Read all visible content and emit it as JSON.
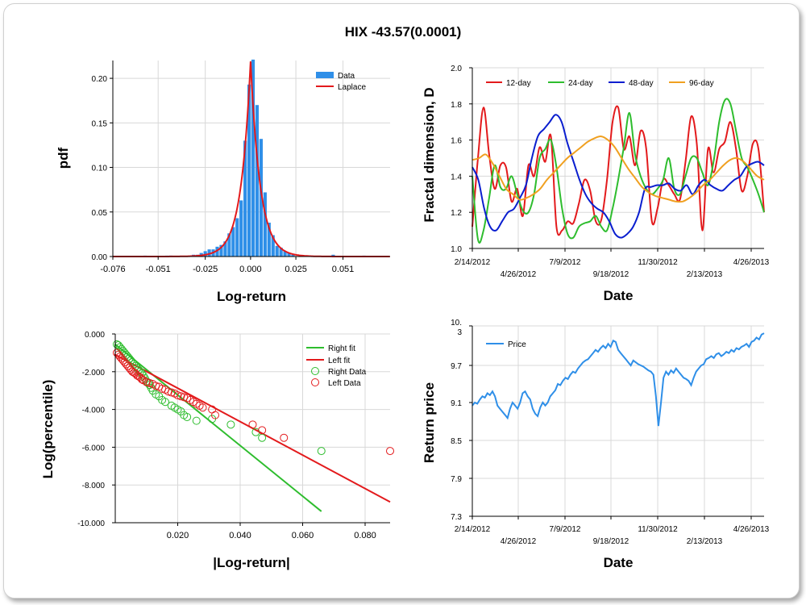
{
  "title": "HIX -43.57(0.0001)",
  "chart_data": [
    {
      "id": "pdf",
      "type": "bar",
      "xlabel": "Log-return",
      "ylabel": "pdf",
      "xlim": [
        -0.076,
        0.077
      ],
      "ylim": [
        0,
        0.22
      ],
      "x_ticks": [
        "-0.076",
        "-0.051",
        "-0.025",
        "0.000",
        "0.025",
        "0.051"
      ],
      "x_tick_values": [
        -0.076,
        -0.051,
        -0.025,
        0.0,
        0.025,
        0.051
      ],
      "y_ticks": [
        "0.00",
        "0.05",
        "0.10",
        "0.15",
        "0.20"
      ],
      "y_tick_values": [
        0.0,
        0.05,
        0.1,
        0.15,
        0.2
      ],
      "legend": {
        "position": "top-right",
        "items": [
          "Data",
          "Laplace"
        ]
      },
      "grid": true,
      "colors": {
        "data": "#2f8fe8",
        "laplace": "#e31a1c"
      },
      "series": [
        {
          "name": "Data",
          "bin_width": 0.0022,
          "x": [
            -0.0582,
            -0.0462,
            -0.044,
            -0.0315,
            -0.0293,
            -0.0272,
            -0.025,
            -0.0228,
            -0.0206,
            -0.0184,
            -0.0162,
            -0.014,
            -0.0118,
            -0.0096,
            -0.0074,
            -0.0052,
            -0.003,
            -0.0008,
            0.0014,
            0.0036,
            0.0058,
            0.008,
            0.0102,
            0.0124,
            0.0146,
            0.0168,
            0.019,
            0.0212,
            0.0234,
            0.0456,
            0.0626
          ],
          "values": [
            0.001,
            0.001,
            0.001,
            0.002,
            0.002,
            0.004,
            0.006,
            0.008,
            0.008,
            0.011,
            0.013,
            0.017,
            0.026,
            0.033,
            0.043,
            0.063,
            0.13,
            0.193,
            0.221,
            0.17,
            0.132,
            0.072,
            0.038,
            0.024,
            0.012,
            0.01,
            0.006,
            0.004,
            0.002,
            0.002,
            0.001
          ]
        },
        {
          "name": "Laplace",
          "b": 0.0053,
          "mu": 0.0
        }
      ]
    },
    {
      "id": "fractal",
      "type": "line",
      "xlabel": "Date",
      "ylabel": "Fractal dimension, D",
      "ylim": [
        1.0,
        2.0
      ],
      "y_ticks": [
        "1.0",
        "1.2",
        "1.4",
        "1.6",
        "1.8",
        "2.0"
      ],
      "y_tick_values": [
        1.0,
        1.2,
        1.4,
        1.6,
        1.8,
        2.0
      ],
      "x_ticks_top": [
        "2/14/2012",
        "7/9/2012",
        "11/30/2012",
        "4/26/2013"
      ],
      "x_ticks_bottom": [
        "4/26/2012",
        "9/18/2012",
        "2/13/2013"
      ],
      "legend": {
        "position": "top",
        "items": [
          "12-day",
          "24-day",
          "48-day",
          "96-day"
        ]
      },
      "grid": true,
      "series": [
        {
          "name": "12-day",
          "color": "#e31a1c",
          "y": [
            1.12,
            1.5,
            1.78,
            1.52,
            1.33,
            1.46,
            1.45,
            1.26,
            1.33,
            1.18,
            1.46,
            1.4,
            1.56,
            1.48,
            1.62,
            1.12,
            1.1,
            1.15,
            1.14,
            1.25,
            1.38,
            1.32,
            1.15,
            1.16,
            1.38,
            1.7,
            1.78,
            1.55,
            1.62,
            1.46,
            1.65,
            1.55,
            1.15,
            1.22,
            1.38,
            1.35,
            1.3,
            1.27,
            1.48,
            1.73,
            1.58,
            1.1,
            1.55,
            1.42,
            1.55,
            1.59,
            1.7,
            1.55,
            1.32,
            1.4,
            1.58,
            1.55,
            1.2
          ]
        },
        {
          "name": "24-day",
          "color": "#2ebd2e",
          "y": [
            1.4,
            1.05,
            1.1,
            1.28,
            1.46,
            1.34,
            1.33,
            1.4,
            1.3,
            1.21,
            1.2,
            1.3,
            1.5,
            1.55,
            1.6,
            1.45,
            1.22,
            1.08,
            1.06,
            1.12,
            1.14,
            1.15,
            1.18,
            1.12,
            1.1,
            1.22,
            1.38,
            1.56,
            1.75,
            1.52,
            1.4,
            1.33,
            1.3,
            1.33,
            1.38,
            1.5,
            1.33,
            1.3,
            1.4,
            1.5,
            1.5,
            1.42,
            1.35,
            1.48,
            1.7,
            1.82,
            1.8,
            1.65,
            1.5,
            1.45,
            1.38,
            1.3,
            1.2
          ]
        },
        {
          "name": "48-day",
          "color": "#0a1ecf",
          "y": [
            1.45,
            1.38,
            1.22,
            1.12,
            1.1,
            1.15,
            1.2,
            1.22,
            1.28,
            1.35,
            1.5,
            1.62,
            1.66,
            1.7,
            1.74,
            1.7,
            1.58,
            1.48,
            1.38,
            1.3,
            1.25,
            1.22,
            1.2,
            1.15,
            1.08,
            1.06,
            1.08,
            1.12,
            1.2,
            1.33,
            1.34,
            1.35,
            1.35,
            1.36,
            1.33,
            1.32,
            1.35,
            1.3,
            1.35,
            1.38,
            1.35,
            1.33,
            1.32,
            1.35,
            1.38,
            1.4,
            1.45,
            1.47,
            1.48,
            1.46
          ]
        },
        {
          "name": "96-day",
          "color": "#f0a020",
          "y": [
            1.49,
            1.5,
            1.52,
            1.47,
            1.4,
            1.33,
            1.3,
            1.27,
            1.28,
            1.3,
            1.33,
            1.38,
            1.42,
            1.46,
            1.5,
            1.53,
            1.56,
            1.59,
            1.61,
            1.62,
            1.6,
            1.56,
            1.5,
            1.44,
            1.39,
            1.34,
            1.31,
            1.29,
            1.28,
            1.27,
            1.26,
            1.26,
            1.28,
            1.31,
            1.35,
            1.38,
            1.42,
            1.46,
            1.49,
            1.5,
            1.48,
            1.44,
            1.4,
            1.38
          ]
        }
      ]
    },
    {
      "id": "tail",
      "type": "scatter",
      "xlabel": "|Log-return|",
      "ylabel": "Log(percentile)",
      "xlim": [
        0.0,
        0.088
      ],
      "ylim": [
        -10.0,
        0.0
      ],
      "x_ticks": [
        "0.020",
        "0.040",
        "0.060",
        "0.080"
      ],
      "x_tick_values": [
        0.02,
        0.04,
        0.06,
        0.08
      ],
      "y_ticks": [
        "0.000",
        "-2.000",
        "-4.000",
        "-6.000",
        "-8.000",
        "-10.000"
      ],
      "y_tick_values": [
        0.0,
        -2.0,
        -4.0,
        -6.0,
        -8.0,
        -10.0
      ],
      "legend": {
        "position": "top-right",
        "items": [
          "Right fit",
          "Left fit",
          "Right Data",
          "Left Data"
        ]
      },
      "grid": true,
      "colors": {
        "right": "#2ebd2e",
        "left": "#e31a1c"
      },
      "right_fit": {
        "x": [
          0.0,
          0.066
        ],
        "y": [
          -0.55,
          -9.4
        ]
      },
      "left_fit": {
        "x": [
          0.0,
          0.088
        ],
        "y": [
          -1.1,
          -8.9
        ]
      },
      "right_data": {
        "x": [
          0.0005,
          0.001,
          0.0015,
          0.002,
          0.0025,
          0.003,
          0.0035,
          0.004,
          0.0045,
          0.005,
          0.0055,
          0.006,
          0.0065,
          0.007,
          0.0075,
          0.008,
          0.0085,
          0.009,
          0.0095,
          0.01,
          0.0105,
          0.011,
          0.0115,
          0.012,
          0.013,
          0.014,
          0.015,
          0.016,
          0.018,
          0.019,
          0.02,
          0.021,
          0.022,
          0.023,
          0.026,
          0.031,
          0.037,
          0.045,
          0.047,
          0.066
        ],
        "y": [
          -0.55,
          -0.6,
          -0.7,
          -0.8,
          -0.9,
          -1.0,
          -1.1,
          -1.2,
          -1.3,
          -1.4,
          -1.5,
          -1.6,
          -1.7,
          -1.8,
          -1.9,
          -2.0,
          -2.1,
          -2.2,
          -2.35,
          -2.5,
          -2.6,
          -2.7,
          -2.85,
          -3.0,
          -3.2,
          -3.3,
          -3.5,
          -3.6,
          -3.8,
          -3.9,
          -4.0,
          -4.1,
          -4.3,
          -4.4,
          -4.6,
          -4.5,
          -4.8,
          -5.2,
          -5.5,
          -6.2
        ]
      },
      "left_data": {
        "x": [
          0.0005,
          0.001,
          0.0015,
          0.002,
          0.0025,
          0.003,
          0.0035,
          0.004,
          0.0045,
          0.005,
          0.0055,
          0.006,
          0.0065,
          0.007,
          0.0075,
          0.008,
          0.0085,
          0.009,
          0.01,
          0.011,
          0.012,
          0.013,
          0.014,
          0.015,
          0.016,
          0.017,
          0.018,
          0.019,
          0.02,
          0.021,
          0.022,
          0.023,
          0.024,
          0.025,
          0.026,
          0.027,
          0.028,
          0.031,
          0.032,
          0.044,
          0.047,
          0.054,
          0.088
        ],
        "y": [
          -1.0,
          -1.1,
          -1.2,
          -1.3,
          -1.4,
          -1.5,
          -1.6,
          -1.7,
          -1.8,
          -1.9,
          -2.0,
          -2.05,
          -2.1,
          -2.2,
          -2.25,
          -2.3,
          -2.4,
          -2.45,
          -2.55,
          -2.6,
          -2.65,
          -2.75,
          -2.8,
          -2.9,
          -2.95,
          -3.05,
          -3.1,
          -3.15,
          -3.25,
          -3.3,
          -3.35,
          -3.4,
          -3.5,
          -3.6,
          -3.7,
          -3.8,
          -3.9,
          -4.0,
          -4.3,
          -4.8,
          -5.1,
          -5.5,
          -6.2
        ]
      }
    },
    {
      "id": "price",
      "type": "line",
      "xlabel": "Date",
      "ylabel": "Return price",
      "y_ticks": [
        "10.\n3",
        "9.7",
        "9.1",
        "8.5",
        "7.9",
        "7.3"
      ],
      "legend": {
        "position": "top-left",
        "items": [
          "Price"
        ]
      },
      "grid": true,
      "x_ticks_top": [
        "2/14/2012",
        "7/9/2012",
        "11/30/2012",
        "4/26/2013"
      ],
      "x_ticks_bottom": [
        "4/26/2012",
        "9/18/2012",
        "2/13/2013"
      ],
      "series": [
        {
          "name": "Price",
          "color": "#2f8fe8",
          "y": [
            9.05,
            9.1,
            9.08,
            9.15,
            9.2,
            9.18,
            9.25,
            9.22,
            9.28,
            9.2,
            9.05,
            9.0,
            8.95,
            8.9,
            8.85,
            9.0,
            9.1,
            9.05,
            9.0,
            9.1,
            9.25,
            9.28,
            9.2,
            9.15,
            9.0,
            8.92,
            8.88,
            9.02,
            9.1,
            9.05,
            9.1,
            9.2,
            9.25,
            9.3,
            9.4,
            9.38,
            9.45,
            9.5,
            9.48,
            9.55,
            9.6,
            9.58,
            9.65,
            9.7,
            9.75,
            9.78,
            9.8,
            9.85,
            9.9,
            9.95,
            9.92,
            9.98,
            10.02,
            9.98,
            10.05,
            10.0,
            10.1,
            10.08,
            9.95,
            9.9,
            9.85,
            9.8,
            9.75,
            9.7,
            9.78,
            9.75,
            9.72,
            9.7,
            9.68,
            9.65,
            9.62,
            9.6,
            9.55,
            9.2,
            8.72,
            9.1,
            9.5,
            9.6,
            9.55,
            9.62,
            9.58,
            9.65,
            9.6,
            9.55,
            9.5,
            9.48,
            9.45,
            9.38,
            9.5,
            9.6,
            9.65,
            9.7,
            9.72,
            9.8,
            9.82,
            9.85,
            9.82,
            9.88,
            9.9,
            9.85,
            9.88,
            9.92,
            9.9,
            9.95,
            9.92,
            9.98,
            9.96,
            10.0,
            10.02,
            10.05,
            10.0,
            10.08,
            10.1,
            10.15,
            10.12,
            10.2,
            10.22
          ]
        }
      ]
    }
  ]
}
